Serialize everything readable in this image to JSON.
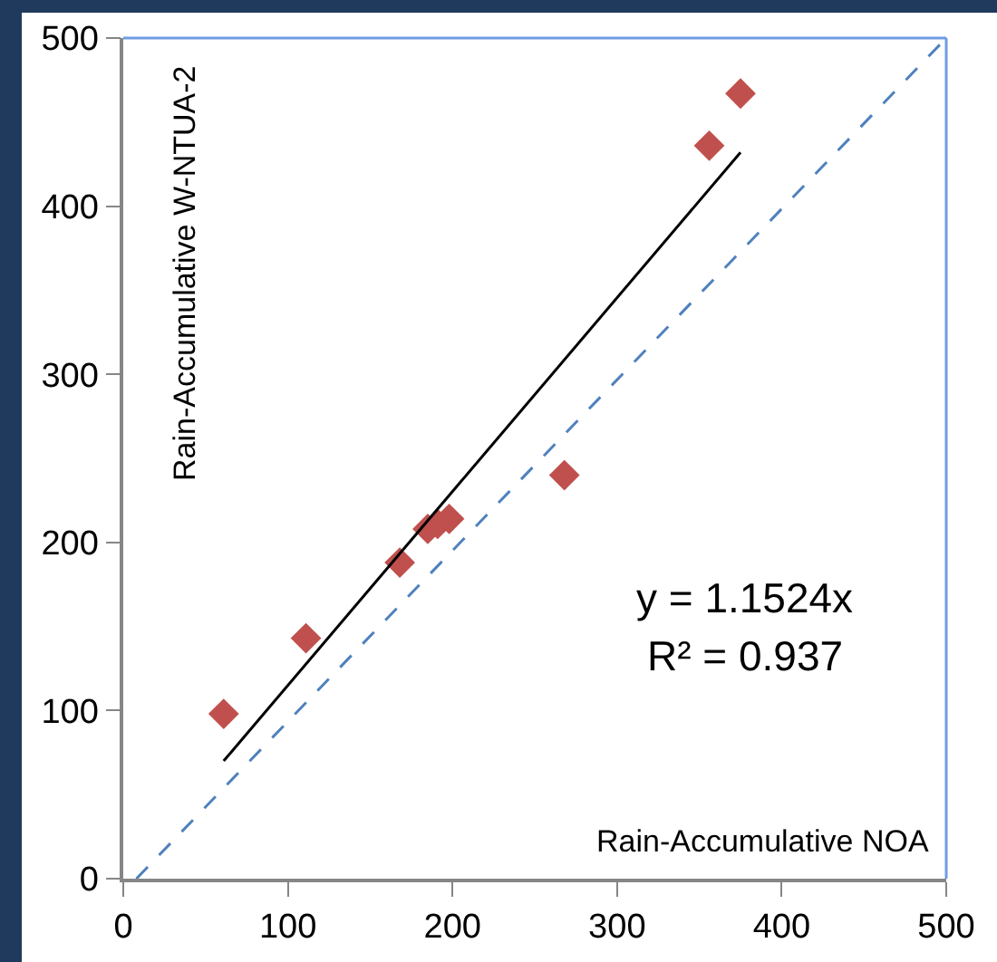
{
  "chart_data": {
    "type": "scatter",
    "xlabel": "Rain-Accumulative NOA",
    "ylabel": "Rain-Accumulative W-NTUA-2",
    "series": [
      {
        "type": "scatter",
        "color": "#c0504d",
        "marker": "diamond",
        "x": [
          61,
          111,
          168,
          185,
          191,
          198,
          268,
          356,
          375
        ],
        "values": [
          98,
          143,
          188,
          208,
          211,
          214,
          240,
          436,
          467
        ]
      },
      {
        "type": "line",
        "color": "#000000",
        "line_style": "solid",
        "x": [
          61,
          375
        ],
        "values": [
          70,
          432
        ]
      },
      {
        "type": "line",
        "color": "#4f81bd",
        "line_style": "dashed",
        "x": [
          8,
          500
        ],
        "values": [
          0,
          500
        ]
      }
    ],
    "annotations": [
      "y = 1.1524x",
      "R² = 0.937"
    ],
    "xlim": [
      0,
      500
    ],
    "ylim": [
      0,
      500
    ],
    "xticks": [
      0,
      100,
      200,
      300,
      400,
      500
    ],
    "yticks": [
      0,
      100,
      200,
      300,
      400,
      500
    ],
    "grid": false
  }
}
